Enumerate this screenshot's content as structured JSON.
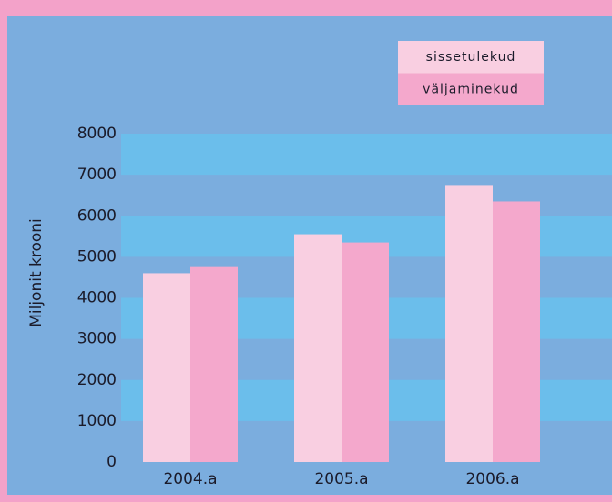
{
  "chart_data": {
    "type": "bar",
    "y_label": "Miljonit krooni",
    "categories": [
      "2004.a",
      "2005.a",
      "2006.a"
    ],
    "series": [
      {
        "name": "sissetulekud",
        "color": "#f9cfe1",
        "values": [
          4600,
          5550,
          6750
        ]
      },
      {
        "name": "väljaminekud",
        "color": "#f4a8cc",
        "values": [
          4750,
          5350,
          6350
        ]
      }
    ],
    "ylim": [
      0,
      8000
    ],
    "yticks": [
      0,
      1000,
      2000,
      3000,
      4000,
      5000,
      6000,
      7000,
      8000
    ],
    "grid": true
  }
}
